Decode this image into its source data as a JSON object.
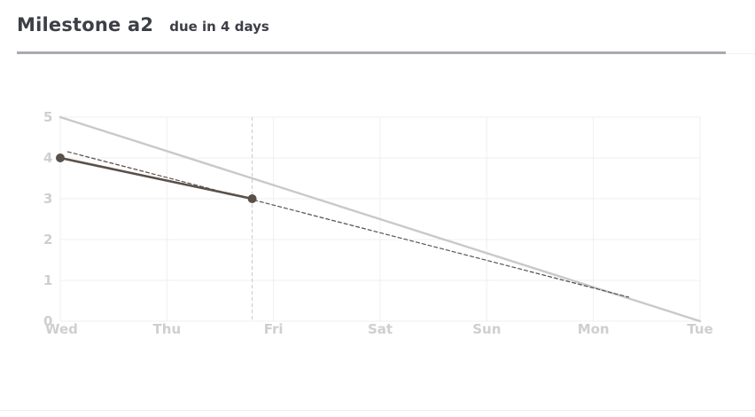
{
  "header": {
    "title": "Milestone a2",
    "subtitle": "due in 4 days"
  },
  "chart_data": {
    "type": "line",
    "title": "",
    "xlabel": "",
    "ylabel": "",
    "categories": [
      "Wed",
      "Thu",
      "Fri",
      "Sat",
      "Sun",
      "Mon",
      "Tue"
    ],
    "xlim": [
      0,
      6
    ],
    "ylim": [
      0,
      5
    ],
    "yticks": [
      0,
      1,
      2,
      3,
      4,
      5
    ],
    "grid": true,
    "legend": "none",
    "today_marker_x": 1.8,
    "series": [
      {
        "role": "ideal",
        "style": "solid",
        "color": "#c9c9c9",
        "points": [
          [
            0,
            5
          ],
          [
            6,
            0
          ]
        ]
      },
      {
        "role": "actual",
        "style": "solid",
        "color": "#5b5049",
        "markers": true,
        "points": [
          [
            0,
            4
          ],
          [
            1.8,
            3
          ]
        ]
      },
      {
        "role": "trend",
        "style": "dashed",
        "color": "#5b5049",
        "points": [
          [
            0.07,
            4.15
          ],
          [
            5.33,
            0.59
          ]
        ]
      }
    ]
  }
}
